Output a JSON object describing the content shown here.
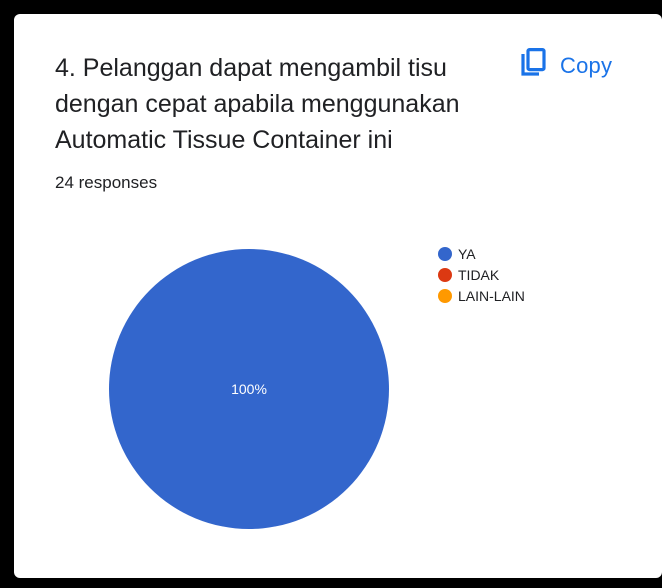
{
  "card": {
    "question": "4. Pelanggan dapat mengambil tisu dengan cepat apabila menggunakan Automatic Tissue Container ini",
    "responses": "24 responses",
    "copy_label": "Copy",
    "copy_icon": "copy-icon"
  },
  "colors": {
    "accent": "#1a73e8",
    "frame": "#000000",
    "card_bg": "#ffffff"
  },
  "chart_data": {
    "type": "pie",
    "title": "",
    "series": [
      {
        "label": "YA",
        "value": 100,
        "color": "#3366cc",
        "data_label": "100%"
      },
      {
        "label": "TIDAK",
        "value": 0,
        "color": "#dc3912",
        "data_label": ""
      },
      {
        "label": "LAIN-LAIN",
        "value": 0,
        "color": "#ff9900",
        "data_label": ""
      }
    ],
    "legend_position": "right"
  }
}
